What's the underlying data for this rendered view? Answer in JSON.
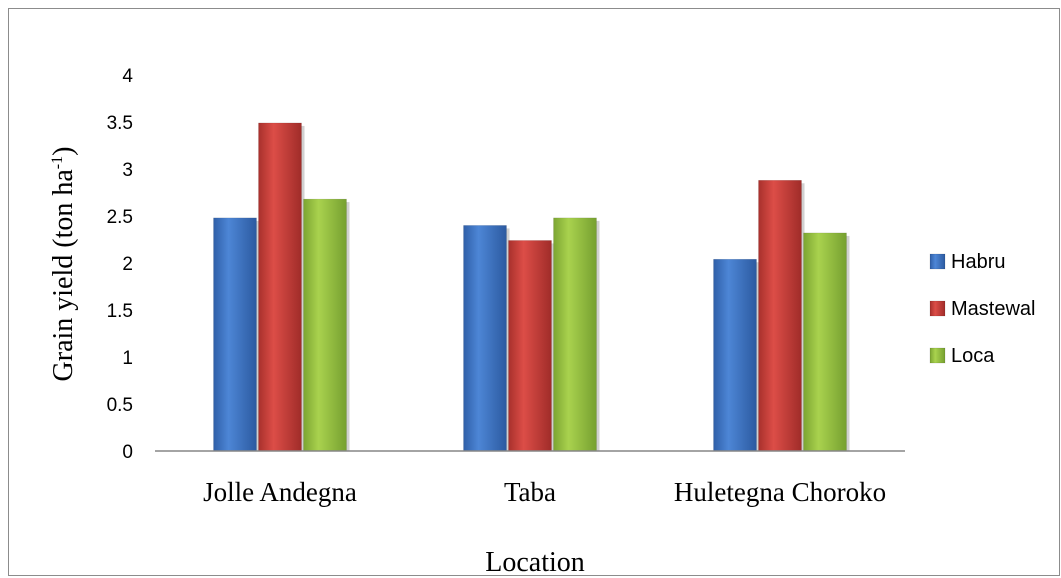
{
  "chart_data": {
    "type": "bar",
    "categories": [
      "Jolle Andegna",
      "Taba",
      "Huletegna Choroko"
    ],
    "series": [
      {
        "name": "Habru",
        "values": [
          2.48,
          2.4,
          2.04
        ],
        "color": "#3a6fc2"
      },
      {
        "name": "Mastewal",
        "values": [
          3.49,
          2.24,
          2.88
        ],
        "color": "#c83a36"
      },
      {
        "name": "Loca",
        "values": [
          2.68,
          2.48,
          2.32
        ],
        "color": "#94c03d"
      }
    ],
    "title": "",
    "xlabel": "Location",
    "ylabel_main": "Grain yield (ton ha",
    "ylabel_sup": "-1",
    "ylabel_end": ")",
    "ylim": [
      0,
      4
    ],
    "yticks": [
      "0",
      "0.5",
      "1",
      "1.5",
      "2",
      "2.5",
      "3",
      "3.5",
      "4"
    ],
    "grid": false,
    "legend_position": "right"
  }
}
